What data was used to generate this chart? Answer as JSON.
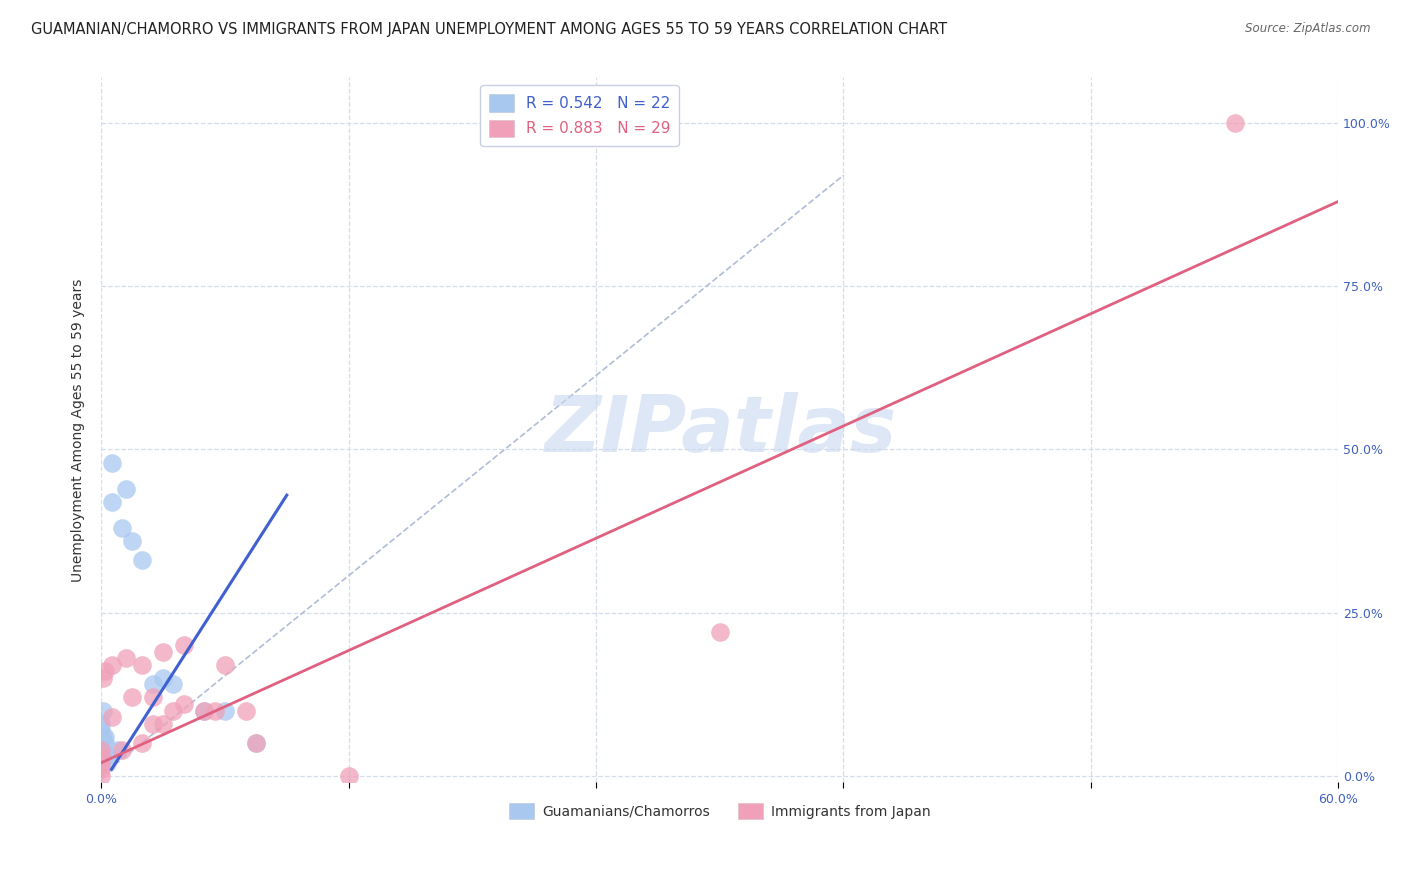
{
  "title": "GUAMANIAN/CHAMORRO VS IMMIGRANTS FROM JAPAN UNEMPLOYMENT AMONG AGES 55 TO 59 YEARS CORRELATION CHART",
  "source": "Source: ZipAtlas.com",
  "ylabel": "Unemployment Among Ages 55 to 59 years",
  "xlim": [
    0.0,
    0.6
  ],
  "ylim": [
    -0.01,
    1.07
  ],
  "ytick_labels_right": [
    "0.0%",
    "25.0%",
    "50.0%",
    "75.0%",
    "100.0%"
  ],
  "ytick_vals_right": [
    0.0,
    0.25,
    0.5,
    0.75,
    1.0
  ],
  "blue_R": 0.542,
  "blue_N": 22,
  "pink_R": 0.883,
  "pink_N": 29,
  "blue_color": "#a8c8f0",
  "pink_color": "#f0a0b8",
  "blue_line_color": "#4060d0",
  "pink_line_color": "#e06080",
  "ref_line_color": "#b0bcd8",
  "watermark_color": "#c8d8f0",
  "watermark": "ZIPatlas",
  "legend_label_blue": "Guamanians/Chamorros",
  "legend_label_pink": "Immigrants from Japan",
  "blue_scatter_x": [
    0.005,
    0.005,
    0.01,
    0.012,
    0.015,
    0.02,
    0.025,
    0.03,
    0.035,
    0.003,
    0.008,
    0.002,
    0.001,
    0.0,
    0.0,
    0.0,
    0.001,
    0.002,
    0.003,
    0.05,
    0.06,
    0.075
  ],
  "blue_scatter_y": [
    0.48,
    0.42,
    0.38,
    0.44,
    0.36,
    0.33,
    0.14,
    0.15,
    0.14,
    0.02,
    0.04,
    0.05,
    0.06,
    0.04,
    0.07,
    0.08,
    0.1,
    0.06,
    0.03,
    0.1,
    0.1,
    0.05
  ],
  "pink_scatter_x": [
    0.0,
    0.0,
    0.0,
    0.0,
    0.0,
    0.001,
    0.002,
    0.005,
    0.005,
    0.01,
    0.012,
    0.015,
    0.02,
    0.02,
    0.025,
    0.025,
    0.03,
    0.03,
    0.035,
    0.04,
    0.04,
    0.05,
    0.055,
    0.06,
    0.07,
    0.075,
    0.3,
    0.12,
    0.55
  ],
  "pink_scatter_y": [
    0.0,
    0.01,
    0.02,
    0.03,
    0.04,
    0.15,
    0.16,
    0.09,
    0.17,
    0.04,
    0.18,
    0.12,
    0.05,
    0.17,
    0.12,
    0.08,
    0.19,
    0.08,
    0.1,
    0.2,
    0.11,
    0.1,
    0.1,
    0.17,
    0.1,
    0.05,
    0.22,
    0.0,
    1.0
  ],
  "blue_line_x": [
    0.005,
    0.09
  ],
  "blue_line_y": [
    0.01,
    0.43
  ],
  "pink_line_x": [
    0.0,
    0.6
  ],
  "pink_line_y": [
    0.02,
    0.88
  ],
  "ref_line_x": [
    0.0,
    0.36
  ],
  "ref_line_y": [
    0.0,
    0.92
  ],
  "marker_size": 180,
  "grid_color": "#d5dcea",
  "background_color": "#ffffff",
  "title_fontsize": 10.5,
  "axis_label_fontsize": 10,
  "tick_fontsize": 9,
  "legend_fontsize": 11
}
